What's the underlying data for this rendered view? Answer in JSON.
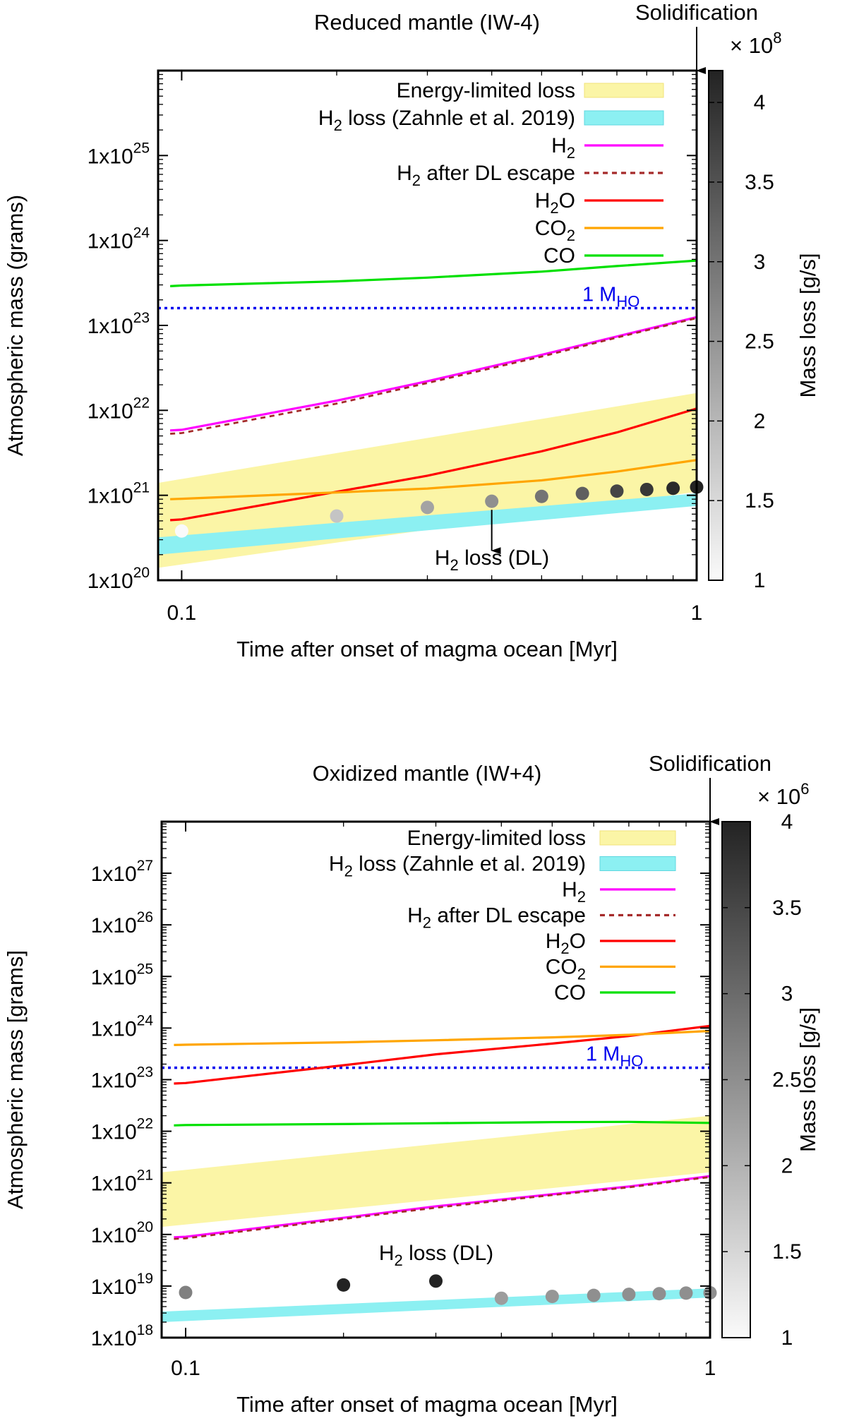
{
  "chart_data": [
    {
      "type": "line",
      "title": "Reduced mantle (IW-4)",
      "xlabel": "Time after onset of magma ocean [Myr]",
      "ylabel": "Atmospheric mass (grams)",
      "xscale": "log",
      "yscale": "log",
      "xlim": [
        0.09,
        1.0
      ],
      "ylim": [
        1e+20,
        1e+26
      ],
      "x_ticks": [
        {
          "v": 0.1,
          "label": "0.1"
        },
        {
          "v": 1,
          "label": "1"
        }
      ],
      "y_ticks": [
        {
          "e": 20,
          "label": "1x10"
        },
        {
          "e": 21,
          "label": "1x10"
        },
        {
          "e": 22,
          "label": "1x10"
        },
        {
          "e": 23,
          "label": "1x10"
        },
        {
          "e": 24,
          "label": "1x10"
        },
        {
          "e": 25,
          "label": "1x10"
        }
      ],
      "solidification_label": "Solidification",
      "solidification_x": 1.0,
      "hline": {
        "y": 1.6e+23,
        "label": "1 M",
        "sub": "HO",
        "color": "#0000ee"
      },
      "bands": [
        {
          "name": "Energy-limited loss",
          "color": "#fbf5a6",
          "x": [
            0.09,
            1.0
          ],
          "lower": [
            1.4e+20,
            1.1e+21
          ],
          "upper": [
            1.4e+21,
            1.6e+22
          ]
        },
        {
          "name": "H2 loss (Zahnle et al. 2019)",
          "color": "#8cf0f2",
          "x": [
            0.09,
            1.0
          ],
          "lower": [
            2e+20,
            7.5e+20
          ],
          "upper": [
            3.2e+20,
            1.05e+21
          ]
        }
      ],
      "series": [
        {
          "name": "H2",
          "color": "#ff00ff",
          "dashed": false,
          "x": [
            0.095,
            0.1,
            0.2,
            0.3,
            0.5,
            0.7,
            1.0
          ],
          "values": [
            5.8e+21,
            5.9e+21,
            1.3e+22,
            2.2e+22,
            4.5e+22,
            7.4e+22,
            1.25e+23
          ]
        },
        {
          "name": "H2 after DL escape",
          "color": "#a52a2a",
          "dashed": true,
          "x": [
            0.095,
            0.1,
            0.2,
            0.3,
            0.5,
            0.7,
            1.0
          ],
          "values": [
            5.3e+21,
            5.4e+21,
            1.2e+22,
            2.1e+22,
            4.3e+22,
            7.2e+22,
            1.22e+23
          ]
        },
        {
          "name": "H2O",
          "color": "#ff0000",
          "dashed": false,
          "x": [
            0.095,
            0.1,
            0.2,
            0.3,
            0.5,
            0.7,
            1.0
          ],
          "values": [
            5.1e+20,
            5.2e+20,
            1.1e+21,
            1.7e+21,
            3.3e+21,
            5.5e+21,
            1.05e+22
          ]
        },
        {
          "name": "CO2",
          "color": "#ffa500",
          "dashed": false,
          "x": [
            0.095,
            0.1,
            0.2,
            0.3,
            0.5,
            0.7,
            1.0
          ],
          "values": [
            9e+20,
            9.1e+20,
            1.08e+21,
            1.2e+21,
            1.5e+21,
            1.9e+21,
            2.6e+21
          ]
        },
        {
          "name": "CO",
          "color": "#00e000",
          "dashed": false,
          "x": [
            0.095,
            0.1,
            0.2,
            0.3,
            0.5,
            0.7,
            1.0
          ],
          "values": [
            2.9e+23,
            2.95e+23,
            3.3e+23,
            3.65e+23,
            4.3e+23,
            5e+23,
            5.8e+23
          ]
        }
      ],
      "legend": {
        "entries": [
          {
            "main": "Energy-limited loss",
            "sub": "",
            "tail": ""
          },
          {
            "main": "H",
            "sub": "2",
            "tail": " loss (Zahnle et al. 2019)"
          },
          {
            "main": "H",
            "sub": "2",
            "tail": ""
          },
          {
            "main": "H",
            "sub": "2",
            "tail": " after DL escape"
          },
          {
            "main": "H",
            "sub": "2",
            "tail": "O"
          },
          {
            "main": "CO",
            "sub": "2",
            "tail": ""
          },
          {
            "main": "CO",
            "sub": "",
            "tail": ""
          }
        ]
      },
      "dl_points": {
        "label_main": "H",
        "label_sub": "2",
        "label_tail": " loss (DL)",
        "arrow_x": 0.4,
        "points": [
          {
            "x": 0.1,
            "y": 3.8e+20,
            "rate": 1.0
          },
          {
            "x": 0.2,
            "y": 5.7e+20,
            "rate": 1.8
          },
          {
            "x": 0.3,
            "y": 7.2e+20,
            "rate": 2.3
          },
          {
            "x": 0.4,
            "y": 8.5e+20,
            "rate": 2.6
          },
          {
            "x": 0.5,
            "y": 9.7e+20,
            "rate": 3.0
          },
          {
            "x": 0.6,
            "y": 1.05e+21,
            "rate": 3.3
          },
          {
            "x": 0.7,
            "y": 1.12e+21,
            "rate": 3.7
          },
          {
            "x": 0.8,
            "y": 1.17e+21,
            "rate": 3.9
          },
          {
            "x": 0.9,
            "y": 1.21e+21,
            "rate": 4.1
          },
          {
            "x": 1.0,
            "y": 1.25e+21,
            "rate": 4.2
          }
        ]
      },
      "colorbar": {
        "label": "Mass loss [g/s]",
        "multiplier": "× 10",
        "multiplier_exp": "8",
        "min": 1,
        "max": 4.2,
        "ticks": [
          {
            "v": 1,
            "label": "1"
          },
          {
            "v": 1.5,
            "label": "1.5"
          },
          {
            "v": 2,
            "label": "2"
          },
          {
            "v": 2.5,
            "label": "2.5"
          },
          {
            "v": 3,
            "label": "3"
          },
          {
            "v": 3.5,
            "label": "3.5"
          },
          {
            "v": 4,
            "label": "4"
          }
        ]
      }
    },
    {
      "type": "line",
      "title": "Oxidized mantle (IW+4)",
      "xlabel": "Time after onset of magma ocean [Myr]",
      "ylabel": "Atmospheric mass [grams]",
      "xscale": "log",
      "yscale": "log",
      "xlim": [
        0.09,
        1.0
      ],
      "ylim": [
        1e+18,
        1e+28
      ],
      "x_ticks": [
        {
          "v": 0.1,
          "label": "0.1"
        },
        {
          "v": 1,
          "label": "1"
        }
      ],
      "y_ticks": [
        {
          "e": 18,
          "label": "1x10"
        },
        {
          "e": 19,
          "label": "1x10"
        },
        {
          "e": 20,
          "label": "1x10"
        },
        {
          "e": 21,
          "label": "1x10"
        },
        {
          "e": 22,
          "label": "1x10"
        },
        {
          "e": 23,
          "label": "1x10"
        },
        {
          "e": 24,
          "label": "1x10"
        },
        {
          "e": 25,
          "label": "1x10"
        },
        {
          "e": 26,
          "label": "1x10"
        },
        {
          "e": 27,
          "label": "1x10"
        }
      ],
      "solidification_label": "Solidification",
      "solidification_x": 1.0,
      "hline": {
        "y": 1.7e+23,
        "label": "1 M",
        "sub": "HO",
        "color": "#0000ee"
      },
      "bands": [
        {
          "name": "Energy-limited loss",
          "color": "#fbf5a6",
          "x": [
            0.09,
            1.0
          ],
          "lower": [
            1.4e+20,
            1.6e+21
          ],
          "upper": [
            1.6e+21,
            2e+22
          ]
        },
        {
          "name": "H2 loss (Zahnle et al. 2019)",
          "color": "#8cf0f2",
          "x": [
            0.09,
            1.0
          ],
          "lower": [
            2e+18,
            6e+18
          ],
          "upper": [
            3.2e+18,
            9e+18
          ]
        }
      ],
      "series": [
        {
          "name": "H2",
          "color": "#ff00ff",
          "dashed": false,
          "x": [
            0.095,
            0.1,
            0.2,
            0.3,
            0.5,
            0.7,
            1.0
          ],
          "values": [
            8.8e+19,
            9e+19,
            2.1e+20,
            3.5e+20,
            6e+20,
            8.5e+20,
            1.35e+21
          ]
        },
        {
          "name": "H2 after DL escape",
          "color": "#a52a2a",
          "dashed": true,
          "x": [
            0.095,
            0.1,
            0.2,
            0.3,
            0.5,
            0.7,
            1.0
          ],
          "values": [
            8.2e+19,
            8.4e+19,
            2e+20,
            3.3e+20,
            5.8e+20,
            8.2e+20,
            1.3e+21
          ]
        },
        {
          "name": "H2O",
          "color": "#ff0000",
          "dashed": false,
          "x": [
            0.095,
            0.1,
            0.2,
            0.3,
            0.5,
            0.7,
            1.0
          ],
          "values": [
            8.4e+22,
            8.6e+22,
            1.9e+23,
            3.1e+23,
            5e+23,
            7e+23,
            1.1e+24
          ]
        },
        {
          "name": "CO2",
          "color": "#ffa500",
          "dashed": false,
          "x": [
            0.095,
            0.1,
            0.2,
            0.3,
            0.5,
            0.7,
            1.0
          ],
          "values": [
            4.7e+23,
            4.75e+23,
            5.3e+23,
            5.8e+23,
            6.6e+23,
            7.4e+23,
            8.8e+23
          ]
        },
        {
          "name": "CO",
          "color": "#00e000",
          "dashed": false,
          "x": [
            0.095,
            0.1,
            0.2,
            0.3,
            0.5,
            0.7,
            1.0
          ],
          "values": [
            1.3e+22,
            1.32e+22,
            1.38e+22,
            1.43e+22,
            1.5e+22,
            1.52e+22,
            1.45e+22
          ]
        }
      ],
      "legend": {
        "entries": [
          {
            "main": "Energy-limited loss",
            "sub": "",
            "tail": ""
          },
          {
            "main": "H",
            "sub": "2",
            "tail": " loss (Zahnle et al. 2019)"
          },
          {
            "main": "H",
            "sub": "2",
            "tail": ""
          },
          {
            "main": "H",
            "sub": "2",
            "tail": " after DL escape"
          },
          {
            "main": "H",
            "sub": "2",
            "tail": "O"
          },
          {
            "main": "CO",
            "sub": "2",
            "tail": ""
          },
          {
            "main": "CO",
            "sub": "",
            "tail": ""
          }
        ]
      },
      "dl_points": {
        "label_main": "H",
        "label_sub": "2",
        "label_tail": " loss (DL)",
        "arrow_x": null,
        "points": [
          {
            "x": 0.1,
            "y": 7.5e+18,
            "rate": 2.7
          },
          {
            "x": 0.2,
            "y": 1.05e+19,
            "rate": 4.0
          },
          {
            "x": 0.3,
            "y": 1.25e+19,
            "rate": 4.0
          },
          {
            "x": 0.4,
            "y": 5.8e+18,
            "rate": 2.3
          },
          {
            "x": 0.5,
            "y": 6.3e+18,
            "rate": 2.4
          },
          {
            "x": 0.6,
            "y": 6.6e+18,
            "rate": 2.5
          },
          {
            "x": 0.7,
            "y": 6.9e+18,
            "rate": 2.5
          },
          {
            "x": 0.8,
            "y": 7.1e+18,
            "rate": 2.5
          },
          {
            "x": 0.9,
            "y": 7.3e+18,
            "rate": 2.5
          },
          {
            "x": 1.0,
            "y": 7.4e+18,
            "rate": 2.5
          }
        ]
      },
      "colorbar": {
        "label": "Mass loss [g/s]",
        "multiplier": "× 10",
        "multiplier_exp": "6",
        "min": 1,
        "max": 4,
        "ticks": [
          {
            "v": 1,
            "label": "1"
          },
          {
            "v": 1.5,
            "label": "1.5"
          },
          {
            "v": 2,
            "label": "2"
          },
          {
            "v": 2.5,
            "label": "2.5"
          },
          {
            "v": 3,
            "label": "3"
          },
          {
            "v": 3.5,
            "label": "3.5"
          },
          {
            "v": 4,
            "label": "4"
          }
        ]
      }
    }
  ]
}
